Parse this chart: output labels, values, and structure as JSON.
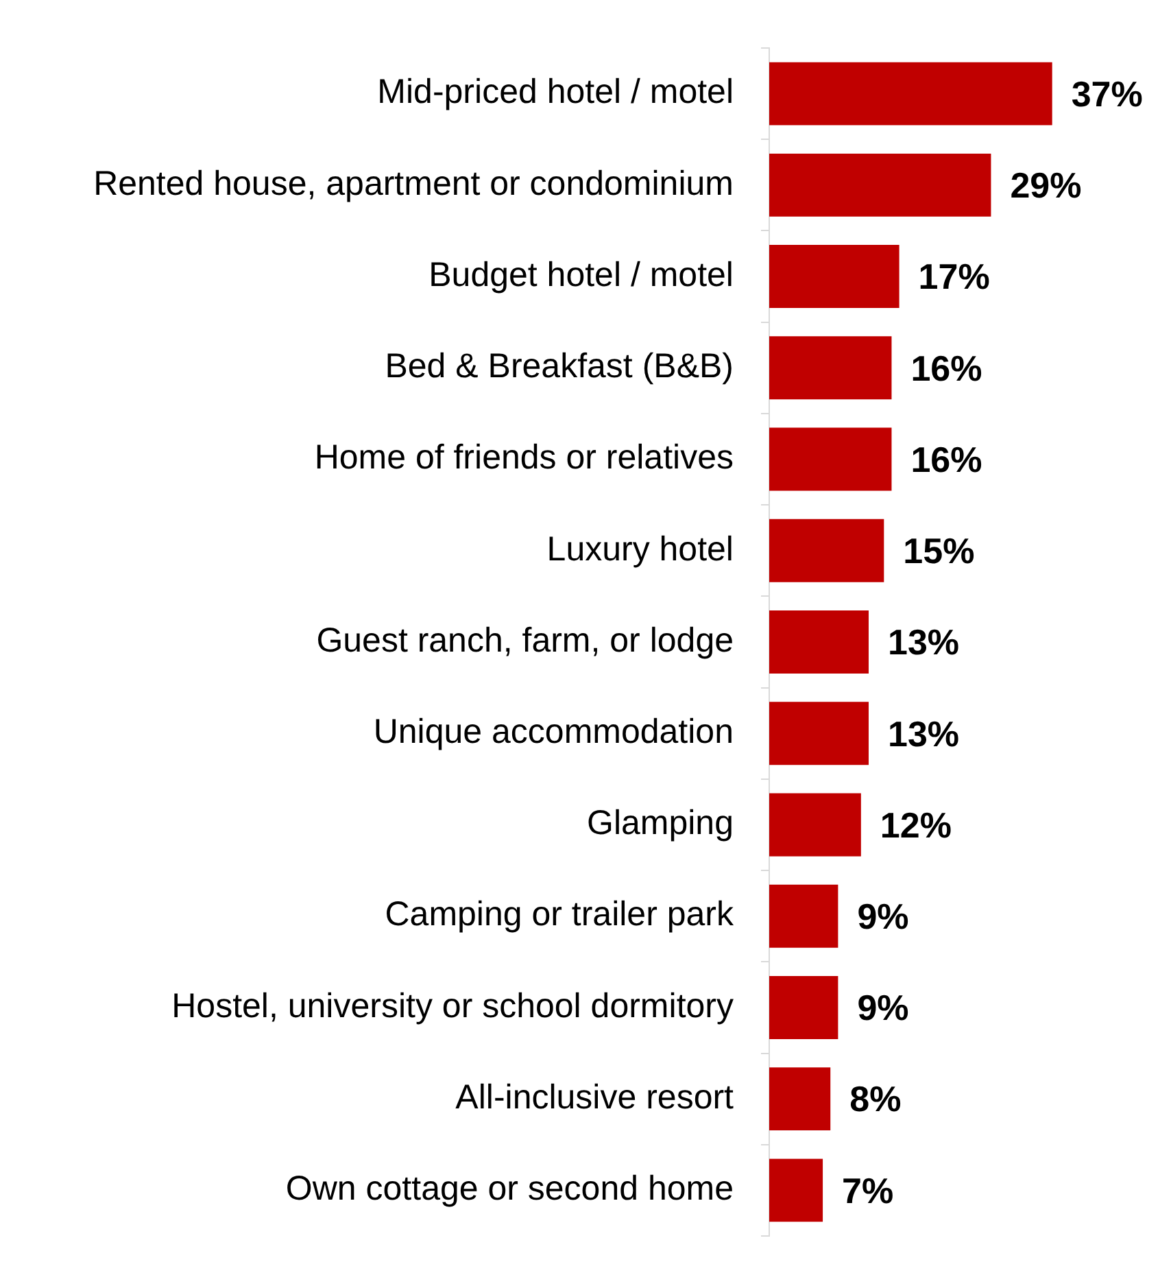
{
  "chart_data": {
    "type": "bar",
    "orientation": "horizontal",
    "categories": [
      "Mid-priced hotel / motel",
      "Rented house, apartment or condominium",
      "Budget hotel / motel",
      "Bed & Breakfast (B&B)",
      "Home of friends or relatives",
      "Luxury hotel",
      "Guest ranch, farm, or lodge",
      "Unique accommodation",
      "Glamping",
      "Camping or trailer park",
      "Hostel, university or school dormitory",
      "All-inclusive resort",
      "Own cottage or second home"
    ],
    "values": [
      37,
      29,
      17,
      16,
      16,
      15,
      13,
      13,
      12,
      9,
      9,
      8,
      7
    ],
    "value_labels": [
      "37%",
      "29%",
      "17%",
      "16%",
      "16%",
      "15%",
      "13%",
      "13%",
      "12%",
      "9%",
      "9%",
      "8%",
      "7%"
    ],
    "color": "#c00000"
  }
}
